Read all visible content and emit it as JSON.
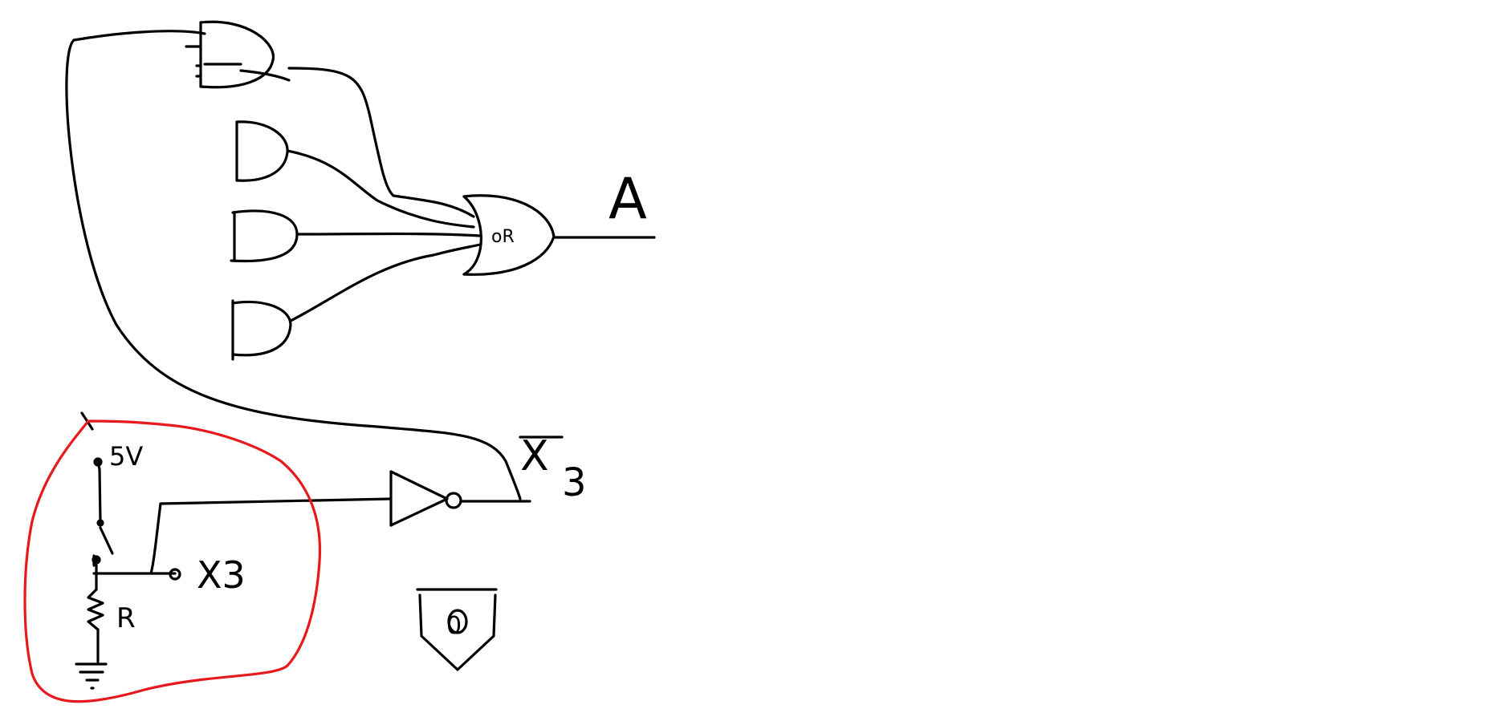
{
  "labels": {
    "output": "A",
    "or_gate": "oR",
    "input_bar": "X",
    "input_bar_sub": "3",
    "input": "X3",
    "supply": "5V",
    "resistor": "R",
    "indicator": "0"
  },
  "colors": {
    "ink": "#000000",
    "highlight": "#e8191c",
    "background": "#ffffff"
  }
}
